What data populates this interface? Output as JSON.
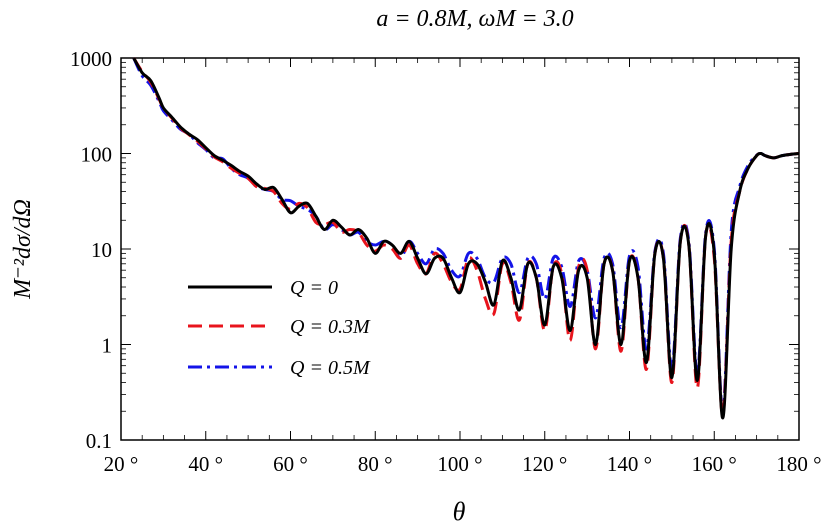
{
  "chart_data": {
    "type": "line",
    "title": "a = 0.8M, ωM = 3.0",
    "xlabel": "θ",
    "ylabel": "M⁻²dσ/dΩ",
    "x_scale": "linear",
    "y_scale": "log",
    "xlim": [
      20,
      180
    ],
    "ylim": [
      0.1,
      1000
    ],
    "x_ticks": [
      20,
      40,
      60,
      80,
      100,
      120,
      140,
      160,
      180
    ],
    "x_tick_labels": [
      "20 °",
      "40 °",
      "60 °",
      "80 °",
      "100 °",
      "120 °",
      "140 °",
      "160 °",
      "180 °"
    ],
    "y_ticks": [
      0.1,
      1,
      10,
      100,
      1000
    ],
    "y_tick_labels": [
      "0.1",
      "1",
      "10",
      "100",
      "1000"
    ],
    "legend_position": "lower-left",
    "grid": false,
    "series": [
      {
        "name": "Q = 0",
        "color": "#000000",
        "dash": "solid",
        "x": [
          23,
          25,
          27,
          29,
          30,
          32,
          34,
          36,
          38,
          40,
          42,
          44,
          46,
          48,
          50,
          52,
          54,
          56,
          58,
          60,
          62,
          64,
          66,
          68,
          70,
          72,
          74,
          76,
          78,
          80,
          82,
          84,
          86,
          88,
          90,
          92,
          94,
          96,
          98,
          100,
          102,
          104,
          106,
          108,
          110,
          112,
          114,
          116,
          118,
          120,
          122,
          124,
          126,
          128,
          130,
          132,
          134,
          136,
          138,
          140,
          142,
          144,
          146,
          148,
          150,
          152,
          154,
          156,
          158,
          160,
          162,
          164,
          166,
          168,
          170,
          171,
          172,
          174,
          176,
          178,
          180
        ],
        "y": [
          1000,
          700,
          580,
          380,
          300,
          240,
          190,
          160,
          140,
          115,
          95,
          85,
          75,
          65,
          58,
          48,
          42,
          44,
          33,
          24,
          28,
          30,
          22,
          16,
          20,
          17,
          14,
          16,
          13,
          9,
          12,
          11,
          9,
          12,
          8,
          5.5,
          8,
          8,
          5,
          3.5,
          7,
          7,
          4.5,
          2.6,
          7.5,
          5,
          2.3,
          7,
          5,
          1.6,
          6.5,
          5,
          1.4,
          6,
          5,
          1.0,
          7,
          6,
          1.0,
          7.5,
          5,
          0.65,
          9,
          8,
          0.45,
          12,
          11,
          0.42,
          14,
          9,
          0.17,
          10,
          40,
          70,
          95,
          100,
          95,
          90,
          95,
          98,
          100
        ]
      },
      {
        "name": "Q = 0.3M",
        "color": "#e8141c",
        "dash": "dashed",
        "x": [
          23,
          25,
          27,
          29,
          30,
          32,
          34,
          36,
          38,
          40,
          42,
          44,
          46,
          48,
          50,
          52,
          54,
          56,
          58,
          60,
          62,
          64,
          66,
          68,
          70,
          72,
          74,
          76,
          78,
          80,
          82,
          84,
          86,
          88,
          90,
          92,
          94,
          96,
          98,
          100,
          102,
          104,
          106,
          108,
          110,
          112,
          114,
          116,
          118,
          120,
          122,
          124,
          126,
          128,
          130,
          132,
          134,
          136,
          138,
          140,
          142,
          144,
          146,
          148,
          150,
          152,
          154,
          156,
          158,
          160,
          162,
          164,
          166,
          168,
          170,
          171,
          172,
          174,
          176,
          178,
          180
        ],
        "y": [
          1000,
          720,
          560,
          370,
          300,
          235,
          185,
          158,
          135,
          112,
          92,
          82,
          70,
          62,
          55,
          45,
          43,
          40,
          30,
          26,
          30,
          27,
          19,
          18,
          19,
          15,
          16,
          15,
          11,
          9.5,
          11,
          10,
          8,
          11,
          7,
          5.5,
          9,
          7,
          4.5,
          3.8,
          8,
          6,
          3,
          2.1,
          7,
          4.5,
          1.8,
          7,
          5,
          1.4,
          6.5,
          5.5,
          1.1,
          6.5,
          6,
          0.9,
          7,
          6,
          0.85,
          7.5,
          5,
          0.55,
          9,
          8,
          0.4,
          12,
          11,
          0.35,
          14,
          8,
          0.18,
          12,
          40,
          70,
          95,
          100,
          95,
          90,
          95,
          98,
          100
        ]
      },
      {
        "name": "Q = 0.5M",
        "color": "#1414e8",
        "dash": "dashdot",
        "x": [
          23,
          25,
          27,
          29,
          30,
          32,
          34,
          36,
          38,
          40,
          42,
          44,
          46,
          48,
          50,
          52,
          54,
          56,
          58,
          60,
          62,
          64,
          66,
          68,
          70,
          72,
          74,
          76,
          78,
          80,
          82,
          84,
          86,
          88,
          90,
          92,
          94,
          96,
          98,
          100,
          102,
          104,
          106,
          108,
          110,
          112,
          114,
          116,
          118,
          120,
          122,
          124,
          126,
          128,
          130,
          132,
          134,
          136,
          138,
          140,
          142,
          144,
          146,
          148,
          150,
          152,
          154,
          156,
          158,
          160,
          162,
          164,
          166,
          168,
          170,
          171,
          172,
          174,
          176,
          178,
          180
        ],
        "y": [
          1000,
          650,
          520,
          350,
          280,
          225,
          180,
          160,
          130,
          110,
          90,
          88,
          70,
          60,
          55,
          45,
          42,
          40,
          33,
          32,
          28,
          26,
          22,
          16,
          18,
          16,
          14,
          15,
          12,
          11,
          12,
          11,
          8,
          12,
          9,
          7,
          10,
          9,
          6,
          5.2,
          9,
          8,
          5,
          4.5,
          8,
          7,
          3.5,
          8,
          7,
          3.0,
          8,
          6.5,
          2.5,
          7.5,
          6,
          1.9,
          8,
          7,
          1.5,
          8.5,
          6.5,
          0.9,
          9.5,
          9,
          0.55,
          13,
          12,
          0.5,
          15,
          10,
          0.2,
          15,
          45,
          75,
          96,
          100,
          95,
          90,
          95,
          98,
          100
        ]
      }
    ]
  }
}
